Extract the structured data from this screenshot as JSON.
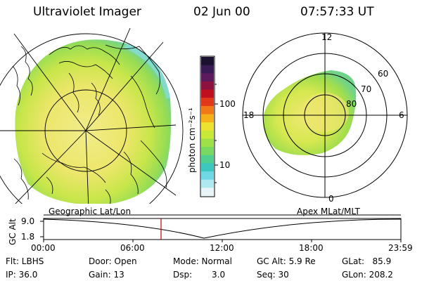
{
  "header": {
    "instrument": "Ultraviolet Imager",
    "date": "02 Jun 00",
    "time": "07:57:33 UT"
  },
  "colorbar": {
    "unit_label": "photon cm⁻²s⁻¹",
    "ticks": [
      "100",
      "10"
    ],
    "colors_top_to_bottom": [
      "#1a1030",
      "#3a1a55",
      "#5c1a5c",
      "#8c1040",
      "#c01020",
      "#e03818",
      "#f07a18",
      "#f6b01a",
      "#eee230",
      "#c8e83a",
      "#9ee048",
      "#78d860",
      "#50d090",
      "#3cc8c0",
      "#70d8e4",
      "#b0e8f0",
      "#e8f4f8"
    ]
  },
  "left_panel": {
    "caption": "Geographic Lat/Lon"
  },
  "right_panel": {
    "caption": "Apex MLat/MLT",
    "mlt_labels": {
      "top": "12",
      "left": "18",
      "right": "6",
      "bottom": "0"
    },
    "lat_labels": [
      "60",
      "70",
      "80"
    ]
  },
  "timeline": {
    "y_axis_label": "GC Alt",
    "y_ticks": [
      "9.0",
      "1.8"
    ],
    "x_ticks": [
      "00:00",
      "06:00",
      "12:00",
      "18:00",
      "23:59"
    ],
    "current_marker_color": "#c00000"
  },
  "status": {
    "flt": "Flt: LBHS",
    "ip": "IP: 36.0",
    "door": "Door: Open",
    "gain": "Gain: 13",
    "mode": "Mode: Normal",
    "dsp_label": "Dsp:",
    "dsp_value": "3.0",
    "gc_alt": "GC Alt: 5.9 Re",
    "seq": "Seq: 30",
    "glat": "GLat:   85.9",
    "glon": "GLon: 208.2"
  }
}
